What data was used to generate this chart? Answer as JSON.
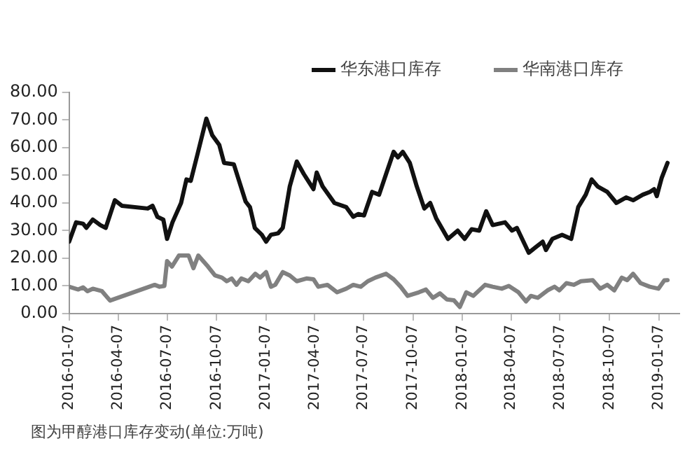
{
  "chart_data": {
    "type": "line",
    "annotations": [
      "图为甲醇港口库存变动(单位:万吨)"
    ],
    "xlim": [
      "2016-01-07",
      "2019-02-14"
    ],
    "xticks": [
      "2016-01-07",
      "2016-04-07",
      "2016-07-07",
      "2016-10-07",
      "2017-01-07",
      "2017-04-07",
      "2017-07-07",
      "2017-10-07",
      "2018-01-07",
      "2018-04-07",
      "2018-07-07",
      "2018-10-07",
      "2019-01-07"
    ],
    "ylim": [
      0,
      80
    ],
    "yticks": [
      {
        "value": 0,
        "label": "0.00"
      },
      {
        "value": 10,
        "label": "10.00"
      },
      {
        "value": 20,
        "label": "20.00"
      },
      {
        "value": 30,
        "label": "30.00"
      },
      {
        "value": 40,
        "label": "40.00"
      },
      {
        "value": 50,
        "label": "50.00"
      },
      {
        "value": 60,
        "label": "60.00"
      },
      {
        "value": 70,
        "label": "70.00"
      },
      {
        "value": 80,
        "label": "80.00"
      }
    ],
    "grid": false,
    "legend": "top",
    "marker": "none",
    "line_style": "solid",
    "series": [
      {
        "name": "华东港口库存",
        "color": "#111111",
        "x": [
          "2016-01-07",
          "2016-01-20",
          "2016-02-02",
          "2016-02-08",
          "2016-02-20",
          "2016-03-05",
          "2016-03-15",
          "2016-04-01",
          "2016-04-14",
          "2016-06-01",
          "2016-06-10",
          "2016-06-19",
          "2016-06-30",
          "2016-07-07",
          "2016-07-17",
          "2016-08-02",
          "2016-08-12",
          "2016-08-20",
          "2016-09-02",
          "2016-09-18",
          "2016-09-29",
          "2016-10-12",
          "2016-10-21",
          "2016-11-08",
          "2016-11-30",
          "2016-12-08",
          "2016-12-17",
          "2016-12-30",
          "2017-01-07",
          "2017-01-16",
          "2017-01-29",
          "2017-02-07",
          "2017-02-20",
          "2017-03-05",
          "2017-03-18",
          "2017-04-05",
          "2017-04-11",
          "2017-04-22",
          "2017-05-14",
          "2017-06-05",
          "2017-06-18",
          "2017-06-27",
          "2017-07-08",
          "2017-07-23",
          "2017-08-05",
          "2017-08-18",
          "2017-09-01",
          "2017-09-09",
          "2017-09-18",
          "2017-10-01",
          "2017-10-14",
          "2017-10-28",
          "2017-11-08",
          "2017-11-19",
          "2017-12-11",
          "2017-12-29",
          "2018-01-11",
          "2018-01-24",
          "2018-02-07",
          "2018-02-20",
          "2018-03-04",
          "2018-03-27",
          "2018-04-09",
          "2018-04-18",
          "2018-05-10",
          "2018-05-23",
          "2018-06-05",
          "2018-06-11",
          "2018-06-23",
          "2018-07-11",
          "2018-07-28",
          "2018-08-10",
          "2018-08-24",
          "2018-09-04",
          "2018-09-15",
          "2018-10-03",
          "2018-10-20",
          "2018-11-07",
          "2018-11-20",
          "2018-12-08",
          "2018-12-21",
          "2018-12-29",
          "2019-01-03",
          "2019-01-12",
          "2019-01-23"
        ],
        "values": [
          26,
          33,
          32.5,
          31,
          34,
          32,
          31,
          41,
          39,
          38,
          39,
          35,
          34,
          27,
          33,
          40,
          48.5,
          48,
          58,
          70.5,
          64.5,
          61,
          54.5,
          54,
          40.5,
          38.5,
          31,
          28.5,
          26,
          28.5,
          29,
          31,
          46,
          55,
          50.5,
          45,
          51,
          46,
          40,
          38.5,
          35,
          36,
          35.5,
          44,
          43,
          50.5,
          58.5,
          56.5,
          58.5,
          54.5,
          46,
          38,
          40,
          34.5,
          27,
          30,
          27,
          30.5,
          30,
          37,
          32,
          33,
          30,
          31,
          22,
          24,
          26,
          23,
          27,
          28.5,
          27,
          38.5,
          43,
          48.5,
          46,
          44,
          40,
          42,
          41,
          43,
          44,
          45,
          42.5,
          49,
          54.5
        ]
      },
      {
        "name": "华南港口库存",
        "color": "#808080",
        "x": [
          "2016-01-07",
          "2016-01-24",
          "2016-02-02",
          "2016-02-10",
          "2016-02-20",
          "2016-03-08",
          "2016-03-23",
          "2016-06-14",
          "2016-06-23",
          "2016-07-02",
          "2016-07-07",
          "2016-07-16",
          "2016-07-29",
          "2016-08-16",
          "2016-08-25",
          "2016-09-03",
          "2016-09-21",
          "2016-10-04",
          "2016-10-17",
          "2016-10-26",
          "2016-11-04",
          "2016-11-13",
          "2016-11-22",
          "2016-12-05",
          "2016-12-18",
          "2016-12-27",
          "2017-01-07",
          "2017-01-16",
          "2017-01-24",
          "2017-02-07",
          "2017-02-20",
          "2017-03-05",
          "2017-03-23",
          "2017-04-05",
          "2017-04-14",
          "2017-05-01",
          "2017-05-19",
          "2017-06-05",
          "2017-06-18",
          "2017-07-02",
          "2017-07-15",
          "2017-07-29",
          "2017-08-18",
          "2017-09-01",
          "2017-09-14",
          "2017-09-27",
          "2017-10-18",
          "2017-10-31",
          "2017-11-13",
          "2017-11-26",
          "2017-12-09",
          "2017-12-22",
          "2018-01-02",
          "2018-01-14",
          "2018-01-27",
          "2018-02-18",
          "2018-03-04",
          "2018-03-21",
          "2018-04-03",
          "2018-04-21",
          "2018-05-05",
          "2018-05-14",
          "2018-05-27",
          "2018-06-14",
          "2018-06-27",
          "2018-07-06",
          "2018-07-19",
          "2018-08-02",
          "2018-08-15",
          "2018-09-06",
          "2018-09-20",
          "2018-10-03",
          "2018-10-16",
          "2018-10-30",
          "2018-11-09",
          "2018-11-20",
          "2018-12-04",
          "2018-12-21",
          "2019-01-06",
          "2019-01-17",
          "2019-01-23"
        ],
        "values": [
          9.7,
          8.7,
          9.5,
          8.1,
          9,
          8.1,
          4.7,
          10.4,
          9.7,
          10,
          19,
          17,
          21,
          21,
          16.4,
          21,
          17,
          13.8,
          13,
          11.7,
          12.7,
          10.4,
          12.7,
          11.7,
          14.4,
          13,
          15,
          9.7,
          10.4,
          15,
          13.8,
          11.7,
          12.7,
          12.4,
          9.7,
          10.4,
          7.7,
          9,
          10.4,
          9.7,
          11.7,
          13,
          14.4,
          12.4,
          9.7,
          6.4,
          7.7,
          8.7,
          5.7,
          7.3,
          5.1,
          4.8,
          2.4,
          7.7,
          6.4,
          10.4,
          9.7,
          9,
          10,
          7.7,
          4.4,
          6.4,
          5.7,
          8.4,
          9.7,
          8.4,
          11,
          10.4,
          11.7,
          12.1,
          9,
          10.4,
          8.4,
          13,
          12.1,
          14.4,
          11,
          9.7,
          9,
          12,
          12.1
        ]
      }
    ]
  }
}
